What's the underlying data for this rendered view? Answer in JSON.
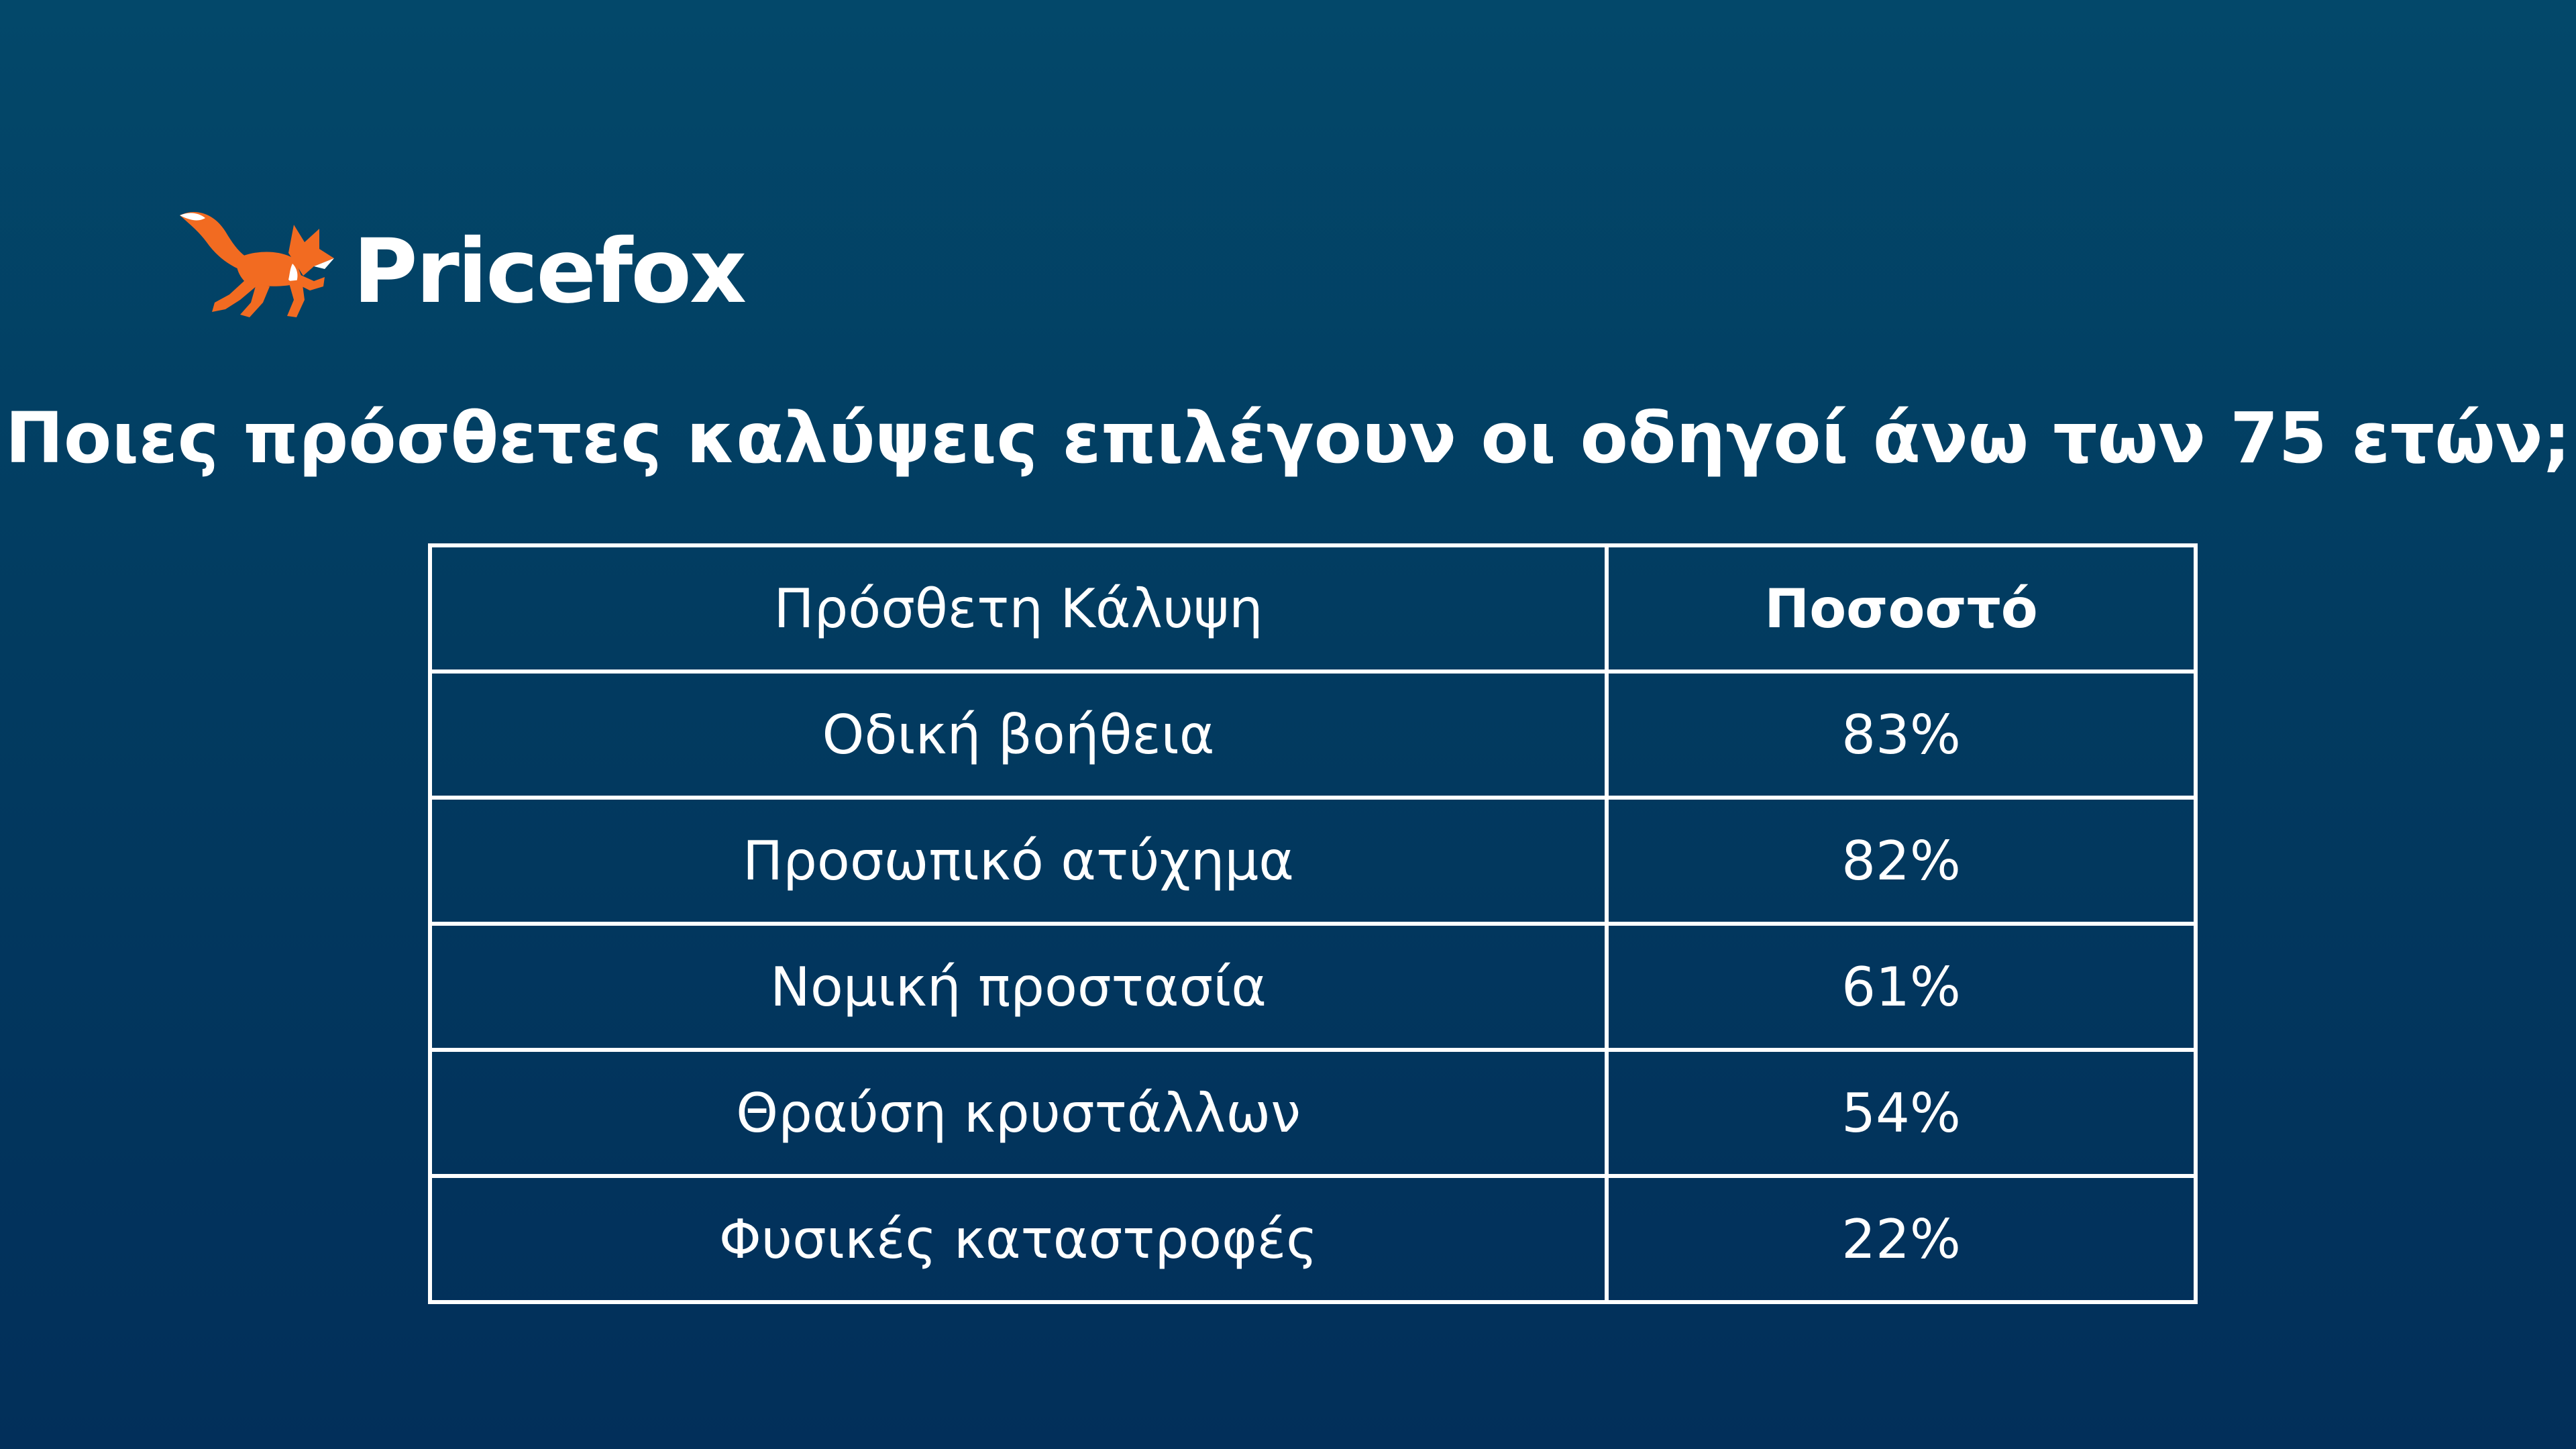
{
  "brand": {
    "name": "Pricefox",
    "icon": "fox-icon",
    "fox_color": "#f26b21"
  },
  "title": "Ποιες πρόσθετες καλύψεις επιλέγουν οι οδηγοί άνω των 75 ετών;",
  "table": {
    "headers": [
      "Πρόσθετη Κάλυψη",
      "Ποσοστό"
    ],
    "rows": [
      [
        "Οδική βοήθεια",
        "83%"
      ],
      [
        "Προσωπικό ατύχημα",
        "82%"
      ],
      [
        "Νομική προστασία",
        "61%"
      ],
      [
        "Θραύση κρυστάλλων",
        "54%"
      ],
      [
        "Φυσικές καταστροφές",
        "22%"
      ]
    ]
  },
  "colors": {
    "background_top": "#03486a",
    "background_bottom": "#022f5a",
    "text": "#ffffff"
  }
}
